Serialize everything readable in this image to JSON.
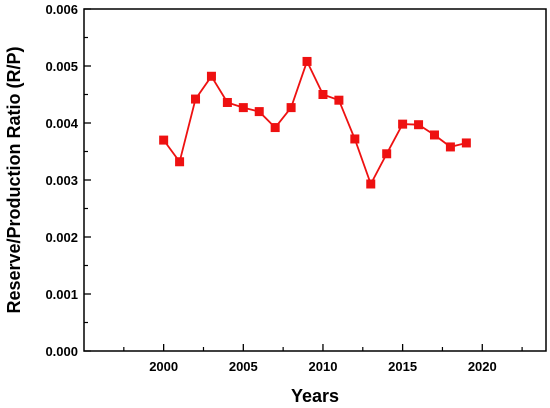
{
  "chart_data": {
    "type": "line",
    "title": "",
    "xlabel": "Years",
    "ylabel": "Reserve/Production Ratio (R/P)",
    "xlim": [
      1995,
      2024
    ],
    "ylim": [
      0.0,
      0.006
    ],
    "x_ticks": [
      2000,
      2005,
      2010,
      2015,
      2020
    ],
    "x_tick_labels": [
      "2000",
      "2005",
      "2010",
      "2015",
      "2020"
    ],
    "y_ticks": [
      0.0,
      0.001,
      0.002,
      0.003,
      0.004,
      0.005,
      0.006
    ],
    "y_tick_labels": [
      "0.000",
      "0.001",
      "0.002",
      "0.003",
      "0.004",
      "0.005",
      "0.006"
    ],
    "grid": false,
    "legend": "none",
    "colors": {
      "series": "#ee1111",
      "axis": "#000000"
    },
    "marker": "square",
    "series": [
      {
        "x": [
          2000,
          2001,
          2002,
          2003,
          2004,
          2005,
          2006,
          2007,
          2008,
          2009,
          2010,
          2011,
          2012,
          2013,
          2014,
          2015,
          2016,
          2017,
          2018,
          2019
        ],
        "values": [
          0.0037,
          0.00332,
          0.00442,
          0.00482,
          0.00436,
          0.00427,
          0.0042,
          0.00392,
          0.00427,
          0.00508,
          0.0045,
          0.0044,
          0.00372,
          0.00293,
          0.00346,
          0.00398,
          0.00397,
          0.00379,
          0.00358,
          0.00365
        ]
      }
    ]
  }
}
